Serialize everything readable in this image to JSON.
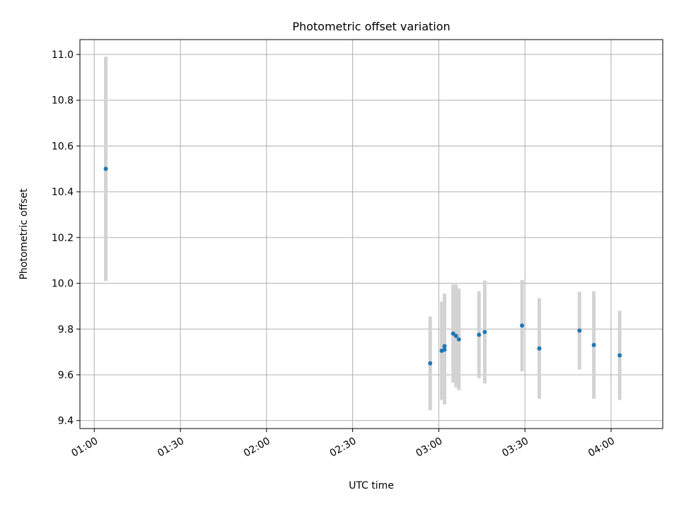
{
  "chart_data": {
    "type": "scatter",
    "title": "Photometric offset variation",
    "xlabel": "UTC time",
    "ylabel": "Photometric offset",
    "xlim": [
      "00:55",
      "04:18"
    ],
    "ylim": [
      9.365,
      11.065
    ],
    "x_ticks": [
      "01:00",
      "01:30",
      "02:00",
      "02:30",
      "03:00",
      "03:30",
      "04:00"
    ],
    "y_ticks": [
      "9.4",
      "9.6",
      "9.8",
      "10.0",
      "10.2",
      "10.4",
      "10.6",
      "10.8",
      "11.0"
    ],
    "grid": true,
    "marker_color": "#1f77b4",
    "errorbar_color": "#d3d3d3",
    "points": [
      {
        "time": "01:04",
        "y": 10.5,
        "err": 0.49
      },
      {
        "time": "02:57",
        "y": 9.65,
        "err": 0.205
      },
      {
        "time": "03:01",
        "y": 9.705,
        "err": 0.215
      },
      {
        "time": "03:02",
        "y": 9.725,
        "err": 0.23
      },
      {
        "time": "03:02",
        "y": 9.71,
        "err": 0.24
      },
      {
        "time": "03:05",
        "y": 9.78,
        "err": 0.215
      },
      {
        "time": "03:06",
        "y": 9.77,
        "err": 0.225
      },
      {
        "time": "03:07",
        "y": 9.755,
        "err": 0.222
      },
      {
        "time": "03:14",
        "y": 9.775,
        "err": 0.19
      },
      {
        "time": "03:16",
        "y": 9.787,
        "err": 0.225
      },
      {
        "time": "03:29",
        "y": 9.815,
        "err": 0.2
      },
      {
        "time": "03:35",
        "y": 9.715,
        "err": 0.22
      },
      {
        "time": "03:49",
        "y": 9.793,
        "err": 0.17
      },
      {
        "time": "03:54",
        "y": 9.73,
        "err": 0.235
      },
      {
        "time": "04:03",
        "y": 9.685,
        "err": 0.195
      }
    ]
  }
}
